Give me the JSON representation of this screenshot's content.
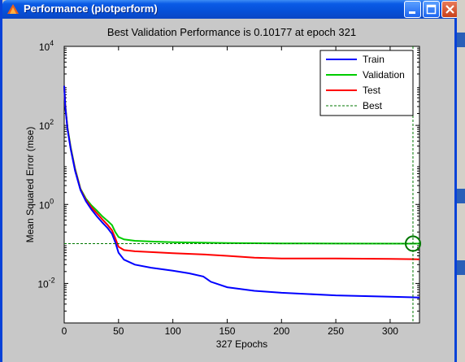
{
  "window": {
    "title": "Performance (plotperform)",
    "title_color": "#ffffff",
    "titlebar_color": "#0a5be6",
    "body_color": "#c8c8c8"
  },
  "chart_data": {
    "type": "line",
    "title": "Best Validation Performance is 0.10177 at epoch 321",
    "xlabel": "327 Epochs",
    "ylabel": "Mean Squared Error  (mse)",
    "yscale": "log",
    "xlim": [
      0,
      327
    ],
    "ylim": [
      0.001,
      10000
    ],
    "x_ticks": [
      0,
      50,
      100,
      150,
      200,
      250,
      300
    ],
    "y_ticks": [
      {
        "value": 0.01,
        "base": "10",
        "exp": "-2"
      },
      {
        "value": 1,
        "base": "10",
        "exp": "0"
      },
      {
        "value": 100,
        "base": "10",
        "exp": "2"
      },
      {
        "value": 10000,
        "base": "10",
        "exp": "4"
      }
    ],
    "legend_position": "top-right",
    "legend": [
      "Train",
      "Validation",
      "Test",
      "Best"
    ],
    "best": {
      "epoch": 321,
      "value": 0.10177
    },
    "series": [
      {
        "name": "Train",
        "color": "#0000ff",
        "points": [
          [
            0,
            1000
          ],
          [
            1,
            300
          ],
          [
            3,
            80
          ],
          [
            6,
            25
          ],
          [
            10,
            7
          ],
          [
            15,
            2.3
          ],
          [
            20,
            1.2
          ],
          [
            25,
            0.75
          ],
          [
            30,
            0.5
          ],
          [
            35,
            0.35
          ],
          [
            40,
            0.25
          ],
          [
            44,
            0.18
          ],
          [
            47,
            0.11
          ],
          [
            50,
            0.06
          ],
          [
            55,
            0.04
          ],
          [
            65,
            0.03
          ],
          [
            80,
            0.025
          ],
          [
            100,
            0.021
          ],
          [
            115,
            0.018
          ],
          [
            128,
            0.015
          ],
          [
            135,
            0.011
          ],
          [
            150,
            0.008
          ],
          [
            175,
            0.0065
          ],
          [
            200,
            0.0058
          ],
          [
            250,
            0.005
          ],
          [
            300,
            0.0046
          ],
          [
            327,
            0.0044
          ]
        ]
      },
      {
        "name": "Validation",
        "color": "#00cc00",
        "points": [
          [
            0,
            1000
          ],
          [
            1,
            320
          ],
          [
            3,
            90
          ],
          [
            6,
            28
          ],
          [
            10,
            8
          ],
          [
            15,
            2.5
          ],
          [
            20,
            1.4
          ],
          [
            25,
            0.95
          ],
          [
            30,
            0.7
          ],
          [
            35,
            0.5
          ],
          [
            40,
            0.38
          ],
          [
            44,
            0.3
          ],
          [
            47,
            0.2
          ],
          [
            50,
            0.15
          ],
          [
            55,
            0.13
          ],
          [
            65,
            0.12
          ],
          [
            80,
            0.115
          ],
          [
            100,
            0.11
          ],
          [
            150,
            0.105
          ],
          [
            200,
            0.103
          ],
          [
            250,
            0.102
          ],
          [
            321,
            0.10177
          ],
          [
            327,
            0.102
          ]
        ]
      },
      {
        "name": "Test",
        "color": "#ff0000",
        "points": [
          [
            0,
            1000
          ],
          [
            1,
            310
          ],
          [
            3,
            85
          ],
          [
            6,
            26
          ],
          [
            10,
            7.5
          ],
          [
            15,
            2.4
          ],
          [
            20,
            1.3
          ],
          [
            25,
            0.85
          ],
          [
            30,
            0.6
          ],
          [
            35,
            0.42
          ],
          [
            40,
            0.3
          ],
          [
            44,
            0.22
          ],
          [
            47,
            0.14
          ],
          [
            50,
            0.085
          ],
          [
            55,
            0.07
          ],
          [
            65,
            0.065
          ],
          [
            80,
            0.062
          ],
          [
            100,
            0.058
          ],
          [
            130,
            0.054
          ],
          [
            150,
            0.05
          ],
          [
            175,
            0.045
          ],
          [
            200,
            0.043
          ],
          [
            250,
            0.043
          ],
          [
            300,
            0.042
          ],
          [
            327,
            0.041
          ]
        ]
      }
    ]
  }
}
